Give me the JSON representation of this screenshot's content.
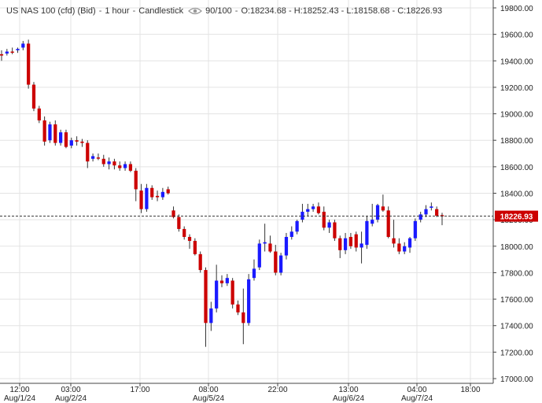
{
  "header": {
    "instrument": "US NAS 100 (cfd) (Bid)",
    "interval": "1 hour",
    "style": "Candlestick",
    "zoom": "90/100",
    "ohlc": "O:18234.68 - H:18252.43 - L:18158.68 - C:18226.93",
    "visibility_icon": "eye-icon"
  },
  "colors": {
    "up": "#1a1aff",
    "down": "#cc0000",
    "last_price_bg": "#cc0000"
  },
  "chart_data": {
    "type": "candlestick",
    "title": "US NAS 100 (cfd) (Bid) - 1 hour - Candlestick",
    "ylim": [
      17000,
      19800
    ],
    "y_ticks": [
      "17000.00",
      "17200.00",
      "17400.00",
      "17600.00",
      "17800.00",
      "18000.00",
      "18200.00",
      "18400.00",
      "18600.00",
      "18800.00",
      "19000.00",
      "19200.00",
      "19400.00",
      "19600.00",
      "19800.00"
    ],
    "x_ticks": [
      {
        "time": "12:00",
        "date": "Aug/1/24"
      },
      {
        "time": "03:00",
        "date": "Aug/2/24"
      },
      {
        "time": "17:00",
        "date": ""
      },
      {
        "time": "08:00",
        "date": "Aug/5/24"
      },
      {
        "time": "22:00",
        "date": ""
      },
      {
        "time": "13:00",
        "date": "Aug/6/24"
      },
      {
        "time": "04:00",
        "date": "Aug/7/24"
      },
      {
        "time": "18:00",
        "date": ""
      }
    ],
    "last_price": "18226.93",
    "grid": true,
    "candles": [
      {
        "o": 19450,
        "h": 19480,
        "l": 19400,
        "c": 19440
      },
      {
        "o": 19455,
        "h": 19490,
        "l": 19440,
        "c": 19470
      },
      {
        "o": 19470,
        "h": 19500,
        "l": 19450,
        "c": 19465
      },
      {
        "o": 19480,
        "h": 19500,
        "l": 19460,
        "c": 19490
      },
      {
        "o": 19500,
        "h": 19550,
        "l": 19480,
        "c": 19530
      },
      {
        "o": 19530,
        "h": 19560,
        "l": 19190,
        "c": 19220
      },
      {
        "o": 19220,
        "h": 19240,
        "l": 19020,
        "c": 19040
      },
      {
        "o": 19040,
        "h": 19060,
        "l": 18930,
        "c": 18950
      },
      {
        "o": 18950,
        "h": 18980,
        "l": 18760,
        "c": 18790
      },
      {
        "o": 18800,
        "h": 18940,
        "l": 18780,
        "c": 18920
      },
      {
        "o": 18920,
        "h": 18950,
        "l": 18760,
        "c": 18780
      },
      {
        "o": 18780,
        "h": 18880,
        "l": 18760,
        "c": 18860
      },
      {
        "o": 18860,
        "h": 18880,
        "l": 18740,
        "c": 18750
      },
      {
        "o": 18760,
        "h": 18820,
        "l": 18740,
        "c": 18800
      },
      {
        "o": 18800,
        "h": 18830,
        "l": 18760,
        "c": 18790
      },
      {
        "o": 18790,
        "h": 18810,
        "l": 18750,
        "c": 18780
      },
      {
        "o": 18780,
        "h": 18800,
        "l": 18590,
        "c": 18640
      },
      {
        "o": 18660,
        "h": 18700,
        "l": 18640,
        "c": 18680
      },
      {
        "o": 18670,
        "h": 18700,
        "l": 18650,
        "c": 18665
      },
      {
        "o": 18660,
        "h": 18690,
        "l": 18600,
        "c": 18620
      },
      {
        "o": 18620,
        "h": 18670,
        "l": 18580,
        "c": 18640
      },
      {
        "o": 18640,
        "h": 18660,
        "l": 18580,
        "c": 18610
      },
      {
        "o": 18610,
        "h": 18640,
        "l": 18570,
        "c": 18590
      },
      {
        "o": 18590,
        "h": 18640,
        "l": 18570,
        "c": 18620
      },
      {
        "o": 18620,
        "h": 18640,
        "l": 18560,
        "c": 18570
      },
      {
        "o": 18570,
        "h": 18590,
        "l": 18340,
        "c": 18430
      },
      {
        "o": 18420,
        "h": 18470,
        "l": 18250,
        "c": 18280
      },
      {
        "o": 18280,
        "h": 18470,
        "l": 18260,
        "c": 18440
      },
      {
        "o": 18440,
        "h": 18460,
        "l": 18350,
        "c": 18370
      },
      {
        "o": 18380,
        "h": 18420,
        "l": 18340,
        "c": 18370
      },
      {
        "o": 18370,
        "h": 18440,
        "l": 18350,
        "c": 18410
      },
      {
        "o": 18430,
        "h": 18450,
        "l": 18390,
        "c": 18400
      },
      {
        "o": 18270,
        "h": 18300,
        "l": 18210,
        "c": 18220
      },
      {
        "o": 18220,
        "h": 18240,
        "l": 18110,
        "c": 18130
      },
      {
        "o": 18130,
        "h": 18150,
        "l": 18050,
        "c": 18070
      },
      {
        "o": 18070,
        "h": 18090,
        "l": 17980,
        "c": 18040
      },
      {
        "o": 18040,
        "h": 18060,
        "l": 17930,
        "c": 17940
      },
      {
        "o": 17940,
        "h": 17960,
        "l": 17800,
        "c": 17820
      },
      {
        "o": 17820,
        "h": 17840,
        "l": 17240,
        "c": 17420
      },
      {
        "o": 17420,
        "h": 17580,
        "l": 17360,
        "c": 17530
      },
      {
        "o": 17530,
        "h": 17860,
        "l": 17500,
        "c": 17740
      },
      {
        "o": 17740,
        "h": 17780,
        "l": 17690,
        "c": 17720
      },
      {
        "o": 17720,
        "h": 17790,
        "l": 17700,
        "c": 17760
      },
      {
        "o": 17740,
        "h": 17760,
        "l": 17530,
        "c": 17560
      },
      {
        "o": 17560,
        "h": 17590,
        "l": 17480,
        "c": 17500
      },
      {
        "o": 17500,
        "h": 17680,
        "l": 17260,
        "c": 17420
      },
      {
        "o": 17420,
        "h": 17790,
        "l": 17400,
        "c": 17750
      },
      {
        "o": 17760,
        "h": 17900,
        "l": 17740,
        "c": 17830
      },
      {
        "o": 17840,
        "h": 18050,
        "l": 17820,
        "c": 18020
      },
      {
        "o": 18020,
        "h": 18170,
        "l": 17960,
        "c": 18030
      },
      {
        "o": 18020,
        "h": 18080,
        "l": 17950,
        "c": 17960
      },
      {
        "o": 17960,
        "h": 18010,
        "l": 17780,
        "c": 17800
      },
      {
        "o": 17800,
        "h": 17950,
        "l": 17780,
        "c": 17930
      },
      {
        "o": 17930,
        "h": 18100,
        "l": 17900,
        "c": 18070
      },
      {
        "o": 18070,
        "h": 18150,
        "l": 18050,
        "c": 18110
      },
      {
        "o": 18110,
        "h": 18200,
        "l": 18090,
        "c": 18190
      },
      {
        "o": 18200,
        "h": 18320,
        "l": 18180,
        "c": 18260
      },
      {
        "o": 18260,
        "h": 18320,
        "l": 18230,
        "c": 18280
      },
      {
        "o": 18280,
        "h": 18320,
        "l": 18260,
        "c": 18300
      },
      {
        "o": 18300,
        "h": 18330,
        "l": 18240,
        "c": 18250
      },
      {
        "o": 18260,
        "h": 18300,
        "l": 18120,
        "c": 18140
      },
      {
        "o": 18140,
        "h": 18200,
        "l": 18100,
        "c": 18180
      },
      {
        "o": 18180,
        "h": 18200,
        "l": 18040,
        "c": 18060
      },
      {
        "o": 18060,
        "h": 18080,
        "l": 17910,
        "c": 17970
      },
      {
        "o": 17970,
        "h": 18100,
        "l": 17940,
        "c": 18060
      },
      {
        "o": 18070,
        "h": 18100,
        "l": 17980,
        "c": 18000
      },
      {
        "o": 18090,
        "h": 18110,
        "l": 17960,
        "c": 17990
      },
      {
        "o": 17990,
        "h": 18110,
        "l": 17870,
        "c": 18020
      },
      {
        "o": 18010,
        "h": 18230,
        "l": 17980,
        "c": 18190
      },
      {
        "o": 18170,
        "h": 18320,
        "l": 18150,
        "c": 18200
      },
      {
        "o": 18200,
        "h": 18320,
        "l": 18180,
        "c": 18310
      },
      {
        "o": 18300,
        "h": 18390,
        "l": 18260,
        "c": 18270
      },
      {
        "o": 18270,
        "h": 18300,
        "l": 18060,
        "c": 18070
      },
      {
        "o": 18060,
        "h": 18200,
        "l": 17990,
        "c": 18020
      },
      {
        "o": 18020,
        "h": 18060,
        "l": 17940,
        "c": 17960
      },
      {
        "o": 17960,
        "h": 18030,
        "l": 17940,
        "c": 18000
      },
      {
        "o": 17990,
        "h": 18070,
        "l": 17950,
        "c": 18060
      },
      {
        "o": 18060,
        "h": 18210,
        "l": 18040,
        "c": 18190
      },
      {
        "o": 18200,
        "h": 18260,
        "l": 18180,
        "c": 18240
      },
      {
        "o": 18240,
        "h": 18310,
        "l": 18220,
        "c": 18280
      },
      {
        "o": 18290,
        "h": 18330,
        "l": 18270,
        "c": 18300
      },
      {
        "o": 18280,
        "h": 18300,
        "l": 18220,
        "c": 18230
      },
      {
        "o": 18234.68,
        "h": 18252.43,
        "l": 18158.68,
        "c": 18226.93
      }
    ]
  }
}
